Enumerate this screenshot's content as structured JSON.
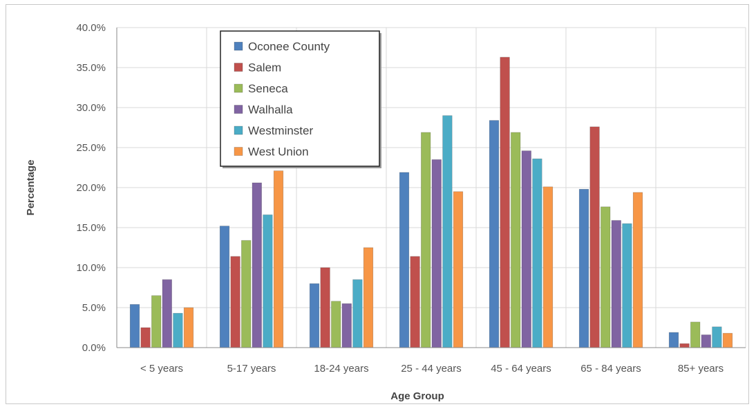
{
  "chart_data": {
    "type": "bar",
    "title": "",
    "xlabel": "Age Group",
    "ylabel": "Percentage",
    "categories": [
      "< 5 years",
      "5-17 years",
      "18-24 years",
      "25 - 44 years",
      "45 - 64 years",
      "65 - 84 years",
      "85+ years"
    ],
    "ylim": [
      0,
      40
    ],
    "yticks": [
      "0.0%",
      "5.0%",
      "10.0%",
      "15.0%",
      "20.0%",
      "25.0%",
      "30.0%",
      "35.0%",
      "40.0%"
    ],
    "grid": true,
    "legend_position": "top-left",
    "series": [
      {
        "name": "Oconee County",
        "color": "#4f81bd",
        "values": [
          5.4,
          15.2,
          8.0,
          21.9,
          28.4,
          19.8,
          1.9
        ]
      },
      {
        "name": "Salem",
        "color": "#c0504d",
        "values": [
          2.5,
          11.4,
          10.0,
          11.4,
          36.3,
          27.6,
          0.5
        ]
      },
      {
        "name": "Seneca",
        "color": "#9bbb59",
        "values": [
          6.5,
          13.4,
          5.8,
          26.9,
          26.9,
          17.6,
          3.2
        ]
      },
      {
        "name": "Walhalla",
        "color": "#8064a2",
        "values": [
          8.5,
          20.6,
          5.5,
          23.5,
          24.6,
          15.9,
          1.6
        ]
      },
      {
        "name": "Westminster",
        "color": "#4bacc6",
        "values": [
          4.3,
          16.6,
          8.5,
          29.0,
          23.6,
          15.5,
          2.6
        ]
      },
      {
        "name": "West Union",
        "color": "#f79646",
        "values": [
          5.0,
          22.1,
          12.5,
          19.5,
          20.1,
          19.4,
          1.8
        ]
      }
    ]
  }
}
